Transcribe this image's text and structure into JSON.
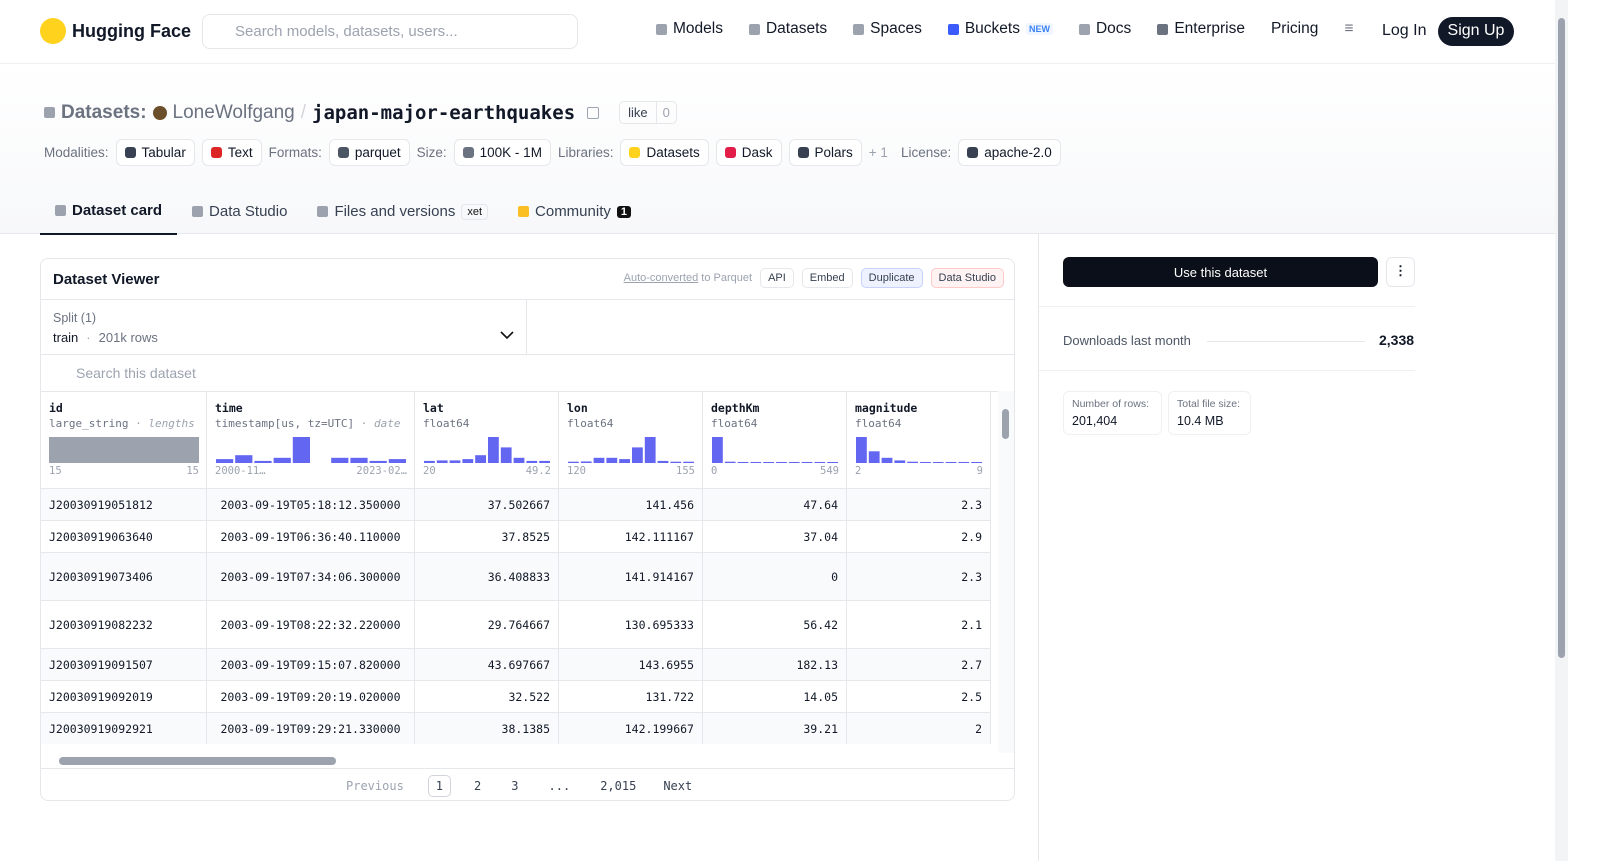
{
  "nav": {
    "logo": "Hugging Face",
    "search_placeholder": "Search models, datasets, users...",
    "links": [
      {
        "label": "Models"
      },
      {
        "label": "Datasets"
      },
      {
        "label": "Spaces"
      },
      {
        "label": "Buckets",
        "badge": "NEW"
      },
      {
        "label": "Docs"
      },
      {
        "label": "Enterprise"
      },
      {
        "label": "Pricing"
      }
    ],
    "login": "Log In",
    "signup": "Sign Up"
  },
  "header": {
    "prefix": "Datasets:",
    "owner": "LoneWolfgang",
    "separator": "/",
    "name": "japan-major-earthquakes",
    "like": "like",
    "like_count": "0"
  },
  "tags": [
    {
      "label": "Modalities:",
      "items": [
        "Tabular",
        "Text"
      ]
    },
    {
      "label": "Formats:",
      "items": [
        "parquet"
      ]
    },
    {
      "label": "Size:",
      "items": [
        "100K - 1M"
      ]
    },
    {
      "label": "Libraries:",
      "items": [
        "Datasets",
        "Dask",
        "Polars"
      ],
      "more": "+ 1"
    },
    {
      "label": "License:",
      "items": [
        "apache-2.0"
      ]
    }
  ],
  "tabs": [
    {
      "label": "Dataset card"
    },
    {
      "label": "Data Studio"
    },
    {
      "label": "Files and versions",
      "badge": "xet"
    },
    {
      "label": "Community",
      "badge": "1"
    }
  ],
  "viewer": {
    "title": "Dataset Viewer",
    "auto_converted": "Auto-converted",
    "to_parquet": "to Parquet",
    "actions": [
      "API",
      "Embed",
      "Duplicate",
      "Data Studio"
    ],
    "split": {
      "label": "Split (1)",
      "name": "train",
      "dot": "·",
      "rows": "201k rows"
    },
    "search": "Search this dataset",
    "columns": [
      {
        "name": "id",
        "type": "large_string",
        "suffix": "lengths",
        "min": "15",
        "max": "15",
        "histogram": [
          100
        ]
      },
      {
        "name": "time",
        "type": "timestamp[us, tz=UTC]",
        "suffix": "date",
        "min": "2000-11…",
        "max": "2023-02…",
        "histogram": [
          15,
          30,
          8,
          20,
          100,
          0,
          20,
          20,
          8,
          15
        ]
      },
      {
        "name": "lat",
        "type": "float64",
        "min": "20",
        "max": "49.2",
        "histogram": [
          8,
          10,
          10,
          15,
          30,
          100,
          60,
          20,
          8,
          8
        ]
      },
      {
        "name": "lon",
        "type": "float64",
        "min": "120",
        "max": "155",
        "histogram": [
          5,
          6,
          20,
          20,
          15,
          60,
          100,
          8,
          5,
          5
        ]
      },
      {
        "name": "depthKm",
        "type": "float64",
        "min": "0",
        "max": "549",
        "histogram": [
          100,
          5,
          4,
          4,
          4,
          4,
          4,
          4,
          4,
          4
        ]
      },
      {
        "name": "magnitude",
        "type": "float64",
        "min": "2",
        "max": "9",
        "histogram": [
          100,
          45,
          20,
          10,
          5,
          4,
          4,
          4,
          4,
          4
        ]
      }
    ],
    "rows": [
      [
        "J20030919051812",
        "2003-09-19T05:18:12.350000",
        "37.502667",
        "141.456",
        "47.64",
        "2.3"
      ],
      [
        "J20030919063640",
        "2003-09-19T06:36:40.110000",
        "37.8525",
        "142.111167",
        "37.04",
        "2.9"
      ],
      [
        "J20030919073406",
        "2003-09-19T07:34:06.300000",
        "36.408833",
        "141.914167",
        "0",
        "2.3"
      ],
      [
        "J20030919082232",
        "2003-09-19T08:22:32.220000",
        "29.764667",
        "130.695333",
        "56.42",
        "2.1"
      ],
      [
        "J20030919091507",
        "2003-09-19T09:15:07.820000",
        "43.697667",
        "143.6955",
        "182.13",
        "2.7"
      ],
      [
        "J20030919092019",
        "2003-09-19T09:20:19.020000",
        "32.522",
        "131.722",
        "14.05",
        "2.5"
      ],
      [
        "J20030919092921",
        "2003-09-19T09:29:21.330000",
        "38.1385",
        "142.199667",
        "39.21",
        "2"
      ]
    ],
    "pagination": {
      "previous": "Previous",
      "pages": [
        "1",
        "2",
        "3",
        "...",
        "2,015"
      ],
      "next": "Next"
    }
  },
  "sidebar": {
    "use_button": "Use this dataset",
    "downloads_label": "Downloads last month",
    "downloads": "2,338",
    "rows_label": "Number of rows:",
    "rows": "201,404",
    "size_label": "Total file size:",
    "size": "10.4 MB"
  }
}
